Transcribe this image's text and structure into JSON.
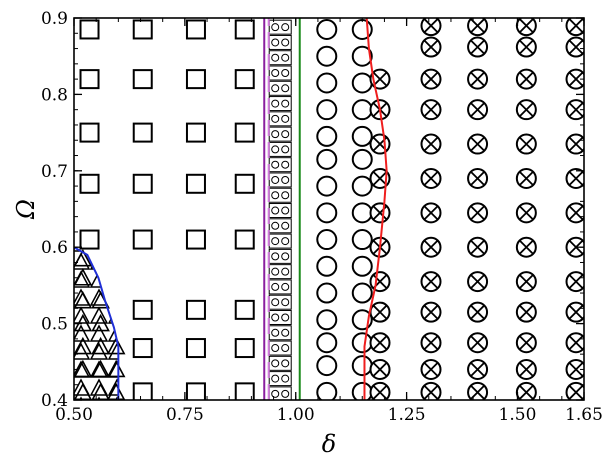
{
  "chart_data": {
    "type": "scatter",
    "title": "",
    "xlabel": "δ",
    "ylabel": "Ω",
    "xlim": [
      0.5,
      1.65
    ],
    "ylim": [
      0.4,
      0.9
    ],
    "x_ticks": [
      "0.50",
      "0.75",
      "1.00",
      "1.25",
      "1.50",
      "1.65"
    ],
    "y_ticks": [
      "0.4",
      "0.5",
      "0.6",
      "0.7",
      "0.8",
      "0.9"
    ],
    "grid": false,
    "legend": "none",
    "marker_rows_omega": [
      0.4,
      0.44,
      0.482,
      0.515,
      0.56,
      0.605,
      0.65,
      0.695,
      0.735,
      0.78,
      0.82,
      0.862,
      0.89
    ],
    "series": [
      {
        "marker": "square",
        "color": "#000000",
        "points": [
          [
            0.885,
            0.41
          ],
          [
            0.885,
            0.468
          ],
          [
            0.885,
            0.518
          ],
          [
            0.885,
            0.61
          ],
          [
            0.885,
            0.683
          ],
          [
            0.885,
            0.75
          ],
          [
            0.885,
            0.82
          ],
          [
            0.885,
            0.885
          ],
          [
            0.775,
            0.41
          ],
          [
            0.775,
            0.468
          ],
          [
            0.775,
            0.518
          ],
          [
            0.775,
            0.61
          ],
          [
            0.775,
            0.683
          ],
          [
            0.775,
            0.75
          ],
          [
            0.775,
            0.82
          ],
          [
            0.775,
            0.885
          ],
          [
            0.655,
            0.41
          ],
          [
            0.655,
            0.468
          ],
          [
            0.655,
            0.518
          ],
          [
            0.655,
            0.61
          ],
          [
            0.655,
            0.683
          ],
          [
            0.655,
            0.75
          ],
          [
            0.655,
            0.82
          ],
          [
            0.655,
            0.885
          ],
          [
            0.535,
            0.61
          ],
          [
            0.535,
            0.683
          ],
          [
            0.535,
            0.75
          ],
          [
            0.535,
            0.82
          ],
          [
            0.535,
            0.885
          ]
        ]
      },
      {
        "marker": "triangle",
        "color": "#000000",
        "points": [
          [
            0.52,
            0.41
          ],
          [
            0.56,
            0.41
          ],
          [
            0.595,
            0.41
          ],
          [
            0.52,
            0.44
          ],
          [
            0.56,
            0.44
          ],
          [
            0.595,
            0.44
          ],
          [
            0.52,
            0.47
          ],
          [
            0.56,
            0.47
          ],
          [
            0.595,
            0.47
          ],
          [
            0.52,
            0.5
          ],
          [
            0.56,
            0.5
          ],
          [
            0.52,
            0.53
          ],
          [
            0.56,
            0.53
          ],
          [
            0.52,
            0.56
          ],
          [
            0.52,
            0.585
          ]
        ]
      },
      {
        "marker": "double-circle",
        "color": "#000000",
        "points": [
          [
            0.965,
            0.408
          ],
          [
            0.965,
            0.428
          ],
          [
            0.965,
            0.448
          ],
          [
            0.965,
            0.468
          ],
          [
            0.965,
            0.488
          ],
          [
            0.965,
            0.508
          ],
          [
            0.965,
            0.528
          ],
          [
            0.965,
            0.548
          ],
          [
            0.965,
            0.568
          ],
          [
            0.965,
            0.588
          ],
          [
            0.965,
            0.608
          ],
          [
            0.965,
            0.628
          ],
          [
            0.965,
            0.648
          ],
          [
            0.965,
            0.668
          ],
          [
            0.965,
            0.688
          ],
          [
            0.965,
            0.708
          ],
          [
            0.965,
            0.728
          ],
          [
            0.965,
            0.748
          ],
          [
            0.965,
            0.768
          ],
          [
            0.965,
            0.788
          ],
          [
            0.965,
            0.808
          ],
          [
            0.965,
            0.828
          ],
          [
            0.965,
            0.848
          ],
          [
            0.965,
            0.868
          ],
          [
            0.965,
            0.888
          ]
        ]
      },
      {
        "marker": "circle",
        "color": "#000000",
        "points": [
          [
            1.07,
            0.41
          ],
          [
            1.07,
            0.445
          ],
          [
            1.07,
            0.475
          ],
          [
            1.07,
            0.505
          ],
          [
            1.07,
            0.54
          ],
          [
            1.07,
            0.575
          ],
          [
            1.07,
            0.61
          ],
          [
            1.07,
            0.645
          ],
          [
            1.07,
            0.68
          ],
          [
            1.07,
            0.715
          ],
          [
            1.07,
            0.745
          ],
          [
            1.07,
            0.78
          ],
          [
            1.07,
            0.815
          ],
          [
            1.07,
            0.85
          ],
          [
            1.07,
            0.885
          ],
          [
            1.15,
            0.41
          ],
          [
            1.15,
            0.445
          ],
          [
            1.15,
            0.475
          ],
          [
            1.15,
            0.505
          ],
          [
            1.15,
            0.54
          ],
          [
            1.15,
            0.575
          ],
          [
            1.15,
            0.61
          ],
          [
            1.15,
            0.645
          ],
          [
            1.15,
            0.68
          ],
          [
            1.15,
            0.715
          ],
          [
            1.15,
            0.745
          ],
          [
            1.15,
            0.78
          ],
          [
            1.15,
            0.815
          ],
          [
            1.15,
            0.85
          ],
          [
            1.15,
            0.885
          ]
        ]
      },
      {
        "marker": "circle-x",
        "color": "#000000",
        "points": [
          [
            1.19,
            0.41
          ],
          [
            1.19,
            0.44
          ],
          [
            1.19,
            0.475
          ],
          [
            1.19,
            0.515
          ],
          [
            1.19,
            0.555
          ],
          [
            1.19,
            0.6
          ],
          [
            1.19,
            0.645
          ],
          [
            1.19,
            0.69
          ],
          [
            1.19,
            0.735
          ],
          [
            1.19,
            0.78
          ],
          [
            1.19,
            0.82
          ],
          [
            1.305,
            0.41
          ],
          [
            1.305,
            0.44
          ],
          [
            1.305,
            0.475
          ],
          [
            1.305,
            0.515
          ],
          [
            1.305,
            0.555
          ],
          [
            1.305,
            0.6
          ],
          [
            1.305,
            0.645
          ],
          [
            1.305,
            0.69
          ],
          [
            1.305,
            0.735
          ],
          [
            1.305,
            0.78
          ],
          [
            1.305,
            0.82
          ],
          [
            1.305,
            0.862
          ],
          [
            1.305,
            0.89
          ],
          [
            1.41,
            0.41
          ],
          [
            1.41,
            0.44
          ],
          [
            1.41,
            0.475
          ],
          [
            1.41,
            0.515
          ],
          [
            1.41,
            0.555
          ],
          [
            1.41,
            0.6
          ],
          [
            1.41,
            0.645
          ],
          [
            1.41,
            0.69
          ],
          [
            1.41,
            0.735
          ],
          [
            1.41,
            0.78
          ],
          [
            1.41,
            0.82
          ],
          [
            1.41,
            0.862
          ],
          [
            1.41,
            0.89
          ],
          [
            1.52,
            0.41
          ],
          [
            1.52,
            0.44
          ],
          [
            1.52,
            0.475
          ],
          [
            1.52,
            0.515
          ],
          [
            1.52,
            0.555
          ],
          [
            1.52,
            0.6
          ],
          [
            1.52,
            0.645
          ],
          [
            1.52,
            0.69
          ],
          [
            1.52,
            0.735
          ],
          [
            1.52,
            0.78
          ],
          [
            1.52,
            0.82
          ],
          [
            1.52,
            0.862
          ],
          [
            1.52,
            0.89
          ],
          [
            1.632,
            0.41
          ],
          [
            1.632,
            0.44
          ],
          [
            1.632,
            0.475
          ],
          [
            1.632,
            0.515
          ],
          [
            1.632,
            0.555
          ],
          [
            1.632,
            0.6
          ],
          [
            1.632,
            0.645
          ],
          [
            1.632,
            0.69
          ],
          [
            1.632,
            0.735
          ],
          [
            1.632,
            0.78
          ],
          [
            1.632,
            0.82
          ],
          [
            1.632,
            0.862
          ],
          [
            1.632,
            0.89
          ]
        ]
      }
    ],
    "boundaries": [
      {
        "color": "#1f2fd6",
        "style": "solid",
        "points": [
          [
            0.6,
            0.4
          ],
          [
            0.6,
            0.47
          ],
          [
            0.59,
            0.495
          ],
          [
            0.57,
            0.53
          ],
          [
            0.555,
            0.56
          ],
          [
            0.53,
            0.59
          ],
          [
            0.5,
            0.6
          ]
        ]
      },
      {
        "color": "#8a1f9f",
        "style": "solid",
        "points": [
          [
            0.929,
            0.4
          ],
          [
            0.929,
            0.9
          ]
        ]
      },
      {
        "color": "#d27bdc",
        "style": "dashed",
        "points": [
          [
            0.939,
            0.4
          ],
          [
            0.939,
            0.9
          ]
        ]
      },
      {
        "color": "#1a8a1a",
        "style": "solid",
        "points": [
          [
            1.009,
            0.4
          ],
          [
            1.009,
            0.9
          ]
        ]
      },
      {
        "color": "#ef1e1e",
        "style": "solid",
        "points": [
          [
            1.155,
            0.4
          ],
          [
            1.155,
            0.47
          ],
          [
            1.165,
            0.51
          ],
          [
            1.18,
            0.55
          ],
          [
            1.19,
            0.6
          ],
          [
            1.2,
            0.66
          ],
          [
            1.205,
            0.7
          ],
          [
            1.2,
            0.74
          ],
          [
            1.19,
            0.78
          ],
          [
            1.175,
            0.82
          ],
          [
            1.165,
            0.86
          ],
          [
            1.16,
            0.9
          ]
        ]
      }
    ]
  }
}
